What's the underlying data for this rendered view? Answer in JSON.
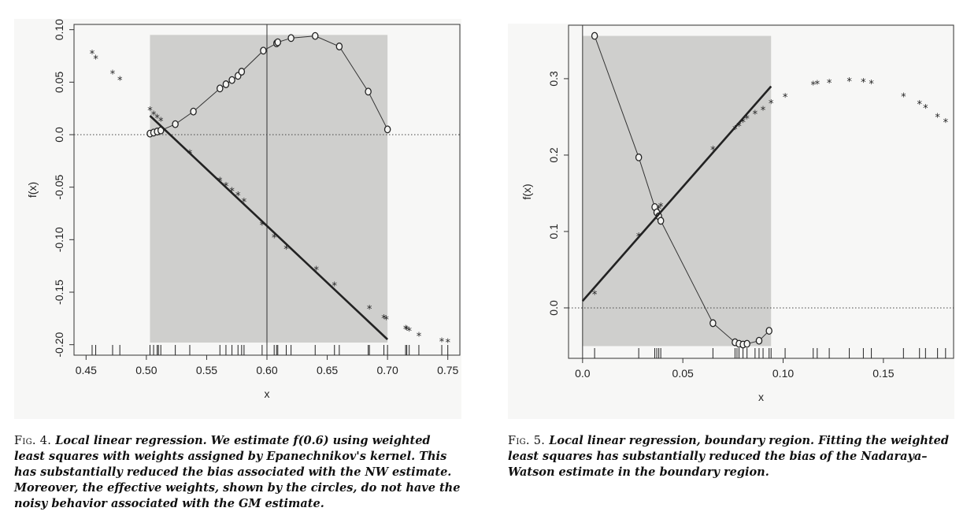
{
  "chart_data": [
    {
      "type": "scatter",
      "xlabel": "x",
      "ylabel": "f(x)",
      "xlim": [
        0.44,
        0.76
      ],
      "ylim": [
        -0.21,
        0.105
      ],
      "x_ticks": [
        "0.45",
        "0.50",
        "0.55",
        "0.60",
        "0.65",
        "0.70",
        "0.75"
      ],
      "y_ticks": [
        "-0.20",
        "-0.15",
        "-0.10",
        "-0.05",
        "0.0",
        "0.05",
        "0.10"
      ],
      "shaded_region": {
        "x": [
          0.503,
          0.7
        ],
        "y": [
          -0.198,
          0.095
        ]
      },
      "vertical_line_x": 0.6,
      "zero_line": true,
      "series": [
        {
          "kind": "star",
          "x": [
            0.455,
            0.458,
            0.472,
            0.478,
            0.503,
            0.506,
            0.509,
            0.512,
            0.536,
            0.561,
            0.566,
            0.571,
            0.576,
            0.581,
            0.596,
            0.606,
            0.616,
            0.641,
            0.656,
            0.685,
            0.697,
            0.699,
            0.715,
            0.716,
            0.718,
            0.726,
            0.745,
            0.75
          ],
          "y": [
            0.078,
            0.073,
            0.059,
            0.053,
            0.024,
            0.02,
            0.017,
            0.014,
            -0.017,
            -0.043,
            -0.048,
            -0.053,
            -0.057,
            -0.063,
            -0.085,
            -0.097,
            -0.108,
            -0.128,
            -0.143,
            -0.165,
            -0.174,
            -0.175,
            -0.184,
            -0.185,
            -0.186,
            -0.191,
            -0.196,
            -0.197
          ]
        },
        {
          "kind": "circle-line",
          "x": [
            0.503,
            0.506,
            0.509,
            0.512,
            0.524,
            0.539,
            0.561,
            0.566,
            0.571,
            0.576,
            0.579,
            0.597,
            0.608,
            0.609,
            0.62,
            0.64,
            0.66,
            0.684,
            0.7
          ],
          "y": [
            0.001,
            0.002,
            0.003,
            0.004,
            0.01,
            0.022,
            0.044,
            0.048,
            0.052,
            0.056,
            0.06,
            0.08,
            0.087,
            0.088,
            0.092,
            0.094,
            0.084,
            0.041,
            0.005
          ]
        },
        {
          "kind": "fit-line",
          "x": [
            0.503,
            0.7
          ],
          "y": [
            0.018,
            -0.195
          ]
        }
      ],
      "rug_x": [
        0.455,
        0.458,
        0.472,
        0.478,
        0.503,
        0.506,
        0.509,
        0.51,
        0.512,
        0.524,
        0.536,
        0.561,
        0.566,
        0.571,
        0.576,
        0.579,
        0.581,
        0.596,
        0.606,
        0.608,
        0.609,
        0.616,
        0.62,
        0.64,
        0.656,
        0.66,
        0.684,
        0.685,
        0.697,
        0.7,
        0.715,
        0.716,
        0.718,
        0.726,
        0.745,
        0.75
      ]
    },
    {
      "type": "scatter",
      "xlabel": "x",
      "ylabel": "f(x)",
      "xlim": [
        -0.007,
        0.185
      ],
      "ylim": [
        -0.066,
        0.37
      ],
      "x_ticks": [
        "0.0",
        "0.05",
        "0.10",
        "0.15"
      ],
      "y_ticks": [
        "0.0",
        "0.1",
        "0.2",
        "0.3"
      ],
      "shaded_region": {
        "x": [
          0.0,
          0.094
        ],
        "y": [
          -0.05,
          0.356
        ]
      },
      "vertical_line_x": 0.0,
      "zero_line": true,
      "series": [
        {
          "kind": "star",
          "x": [
            0.006,
            0.028,
            0.037,
            0.038,
            0.039,
            0.065,
            0.076,
            0.078,
            0.08,
            0.082,
            0.086,
            0.09,
            0.094,
            0.101,
            0.115,
            0.117,
            0.123,
            0.133,
            0.14,
            0.144,
            0.16,
            0.168,
            0.171,
            0.177,
            0.181
          ],
          "y": [
            0.019,
            0.095,
            0.127,
            0.131,
            0.134,
            0.208,
            0.235,
            0.239,
            0.244,
            0.249,
            0.255,
            0.26,
            0.269,
            0.277,
            0.293,
            0.294,
            0.296,
            0.298,
            0.297,
            0.295,
            0.278,
            0.268,
            0.263,
            0.251,
            0.244
          ]
        },
        {
          "kind": "circle-line",
          "x": [
            0.006,
            0.028,
            0.036,
            0.037,
            0.038,
            0.039,
            0.065,
            0.076,
            0.078,
            0.08,
            0.082,
            0.088,
            0.093
          ],
          "y": [
            0.356,
            0.197,
            0.132,
            0.125,
            0.12,
            0.114,
            -0.02,
            -0.045,
            -0.047,
            -0.048,
            -0.047,
            -0.043,
            -0.03
          ]
        },
        {
          "kind": "fit-line",
          "x": [
            0.0,
            0.094
          ],
          "y": [
            0.009,
            0.29
          ]
        }
      ],
      "rug_x": [
        0.006,
        0.028,
        0.036,
        0.037,
        0.038,
        0.039,
        0.065,
        0.076,
        0.077,
        0.078,
        0.08,
        0.082,
        0.086,
        0.088,
        0.09,
        0.093,
        0.094,
        0.101,
        0.115,
        0.117,
        0.123,
        0.133,
        0.14,
        0.144,
        0.16,
        0.168,
        0.171,
        0.177,
        0.181
      ]
    }
  ],
  "captions": [
    {
      "fig": "Fig. 4.",
      "text": "Local linear regression. We estimate f(0.6) using weighted least squares with weights assigned by Epanechnikov's kernel. This has substantially reduced the bias associated with the NW estimate. Moreover, the effective weights, shown by the circles, do not have the noisy behavior associated with the GM estimate."
    },
    {
      "fig": "Fig. 5.",
      "text": "Local linear regression, boundary region. Fitting the weighted least squares has substantially reduced the bias of the Nadaraya–Watson estimate in the boundary region."
    }
  ]
}
